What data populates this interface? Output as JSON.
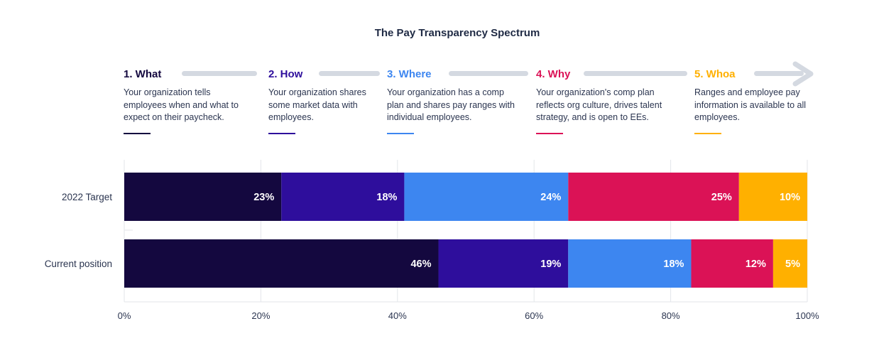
{
  "title": "The Pay Transparency Spectrum",
  "stages": [
    {
      "label": "1. What",
      "color": "#14083f",
      "description": "Your organization tells employees when and what to expect on their paycheck."
    },
    {
      "label": "2. How",
      "color": "#2e0e9c",
      "description": "Your organization shares some market data with employees."
    },
    {
      "label": "3. Where",
      "color": "#3d86f0",
      "description": "Your organization has a comp plan and shares pay ranges with individual employees."
    },
    {
      "label": "4. Why",
      "color": "#db1256",
      "description": "Your organization's comp plan reflects org culture, drives talent strategy, and is open to EEs."
    },
    {
      "label": "5. Whoa",
      "color": "#ffb000",
      "description": "Ranges and employee pay information is available to all employees."
    }
  ],
  "chart_data": {
    "type": "bar",
    "orientation": "horizontal",
    "stacked": true,
    "categories": [
      "2022 Target",
      "Current position"
    ],
    "series": [
      {
        "name": "1. What",
        "color": "#14083f",
        "values": [
          23,
          46
        ],
        "labels": [
          "23%",
          "46%"
        ]
      },
      {
        "name": "2. How",
        "color": "#2e0e9c",
        "values": [
          18,
          19
        ],
        "labels": [
          "18%",
          "19%"
        ]
      },
      {
        "name": "3. Where",
        "color": "#3d86f0",
        "values": [
          24,
          18
        ],
        "labels": [
          "24%",
          "18%"
        ]
      },
      {
        "name": "4. Why",
        "color": "#db1256",
        "values": [
          25,
          12
        ],
        "labels": [
          "25%",
          "12%"
        ]
      },
      {
        "name": "5. Whoa",
        "color": "#ffb000",
        "values": [
          10,
          5
        ],
        "labels": [
          "10%",
          "5%"
        ]
      }
    ],
    "xlim": [
      0,
      100
    ],
    "xticks": [
      {
        "value": 0,
        "label": "0%"
      },
      {
        "value": 20,
        "label": "20%"
      },
      {
        "value": 40,
        "label": "40%"
      },
      {
        "value": 60,
        "label": "60%"
      },
      {
        "value": 80,
        "label": "80%"
      },
      {
        "value": 100,
        "label": "100%"
      }
    ],
    "grid": true
  }
}
